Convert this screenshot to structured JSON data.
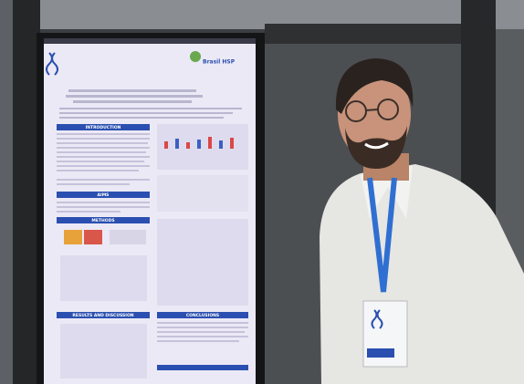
{
  "poster": {
    "logo_text": "Brasil HSP",
    "sections": [
      "INTRODUCTION",
      "AIMS",
      "METHODS",
      "RESULTS AND DISCUSSION",
      "CONCLUSIONS"
    ]
  }
}
